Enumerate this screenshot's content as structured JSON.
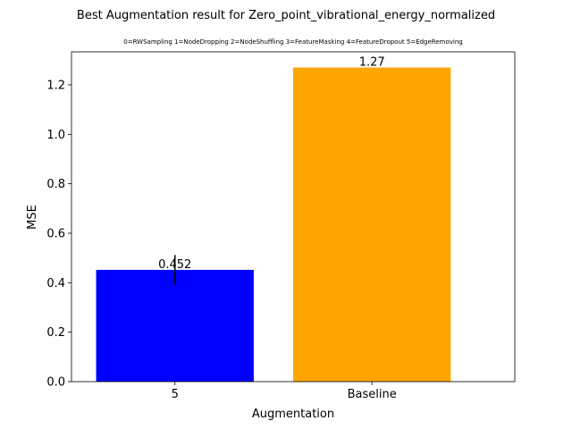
{
  "chart_data": {
    "type": "bar",
    "title": "Best Augmentation result for Zero_point_vibrational_energy_normalized",
    "subtitle": "0=RWSampling 1=NodeDropping 2=NodeShuffling 3=FeatureMasking 4=FeatureDropout 5=EdgeRemoving",
    "xlabel": "Augmentation",
    "ylabel": "MSE",
    "categories": [
      "5",
      "Baseline"
    ],
    "values": [
      0.452,
      1.27
    ],
    "value_labels": [
      "0.452",
      "1.27"
    ],
    "error": [
      0.06,
      null
    ],
    "colors": [
      "#0000ff",
      "#ffa500"
    ],
    "ylim": [
      0,
      1.3335
    ],
    "yticks": [
      0.0,
      0.2,
      0.4,
      0.6,
      0.8,
      1.0,
      1.2
    ],
    "ytick_labels": [
      "0.0",
      "0.2",
      "0.4",
      "0.6",
      "0.8",
      "1.0",
      "1.2"
    ],
    "grid": false
  }
}
